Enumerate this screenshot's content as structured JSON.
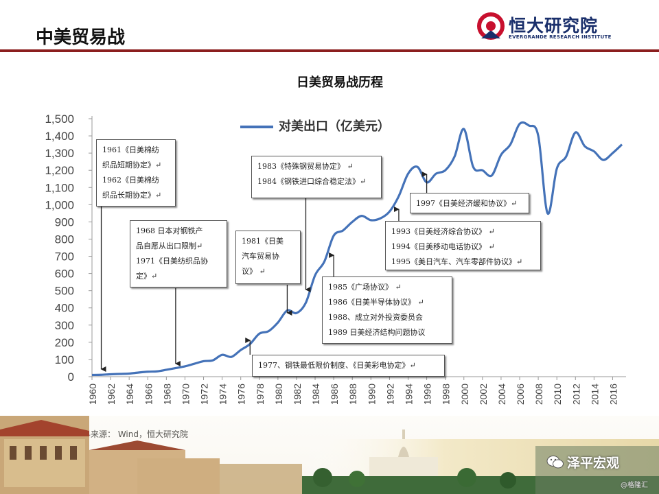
{
  "header": {
    "title": "中美贸易战"
  },
  "logo": {
    "cn": "恒大研究院",
    "en": "EVERGRANDE RESEARCH INSTITUTE",
    "icon": "evergrande-logo-icon",
    "accent": "#c8102e",
    "navy": "#1a2f6b"
  },
  "colors": {
    "rule": "#8b1e1e",
    "line": "#4472b8"
  },
  "source": "资料来源： Wind，恒大研究院",
  "brand": {
    "name": "泽平宏观",
    "sub": "@格隆汇",
    "icon": "wechat-icon"
  },
  "annotations": [
    {
      "lines": [
        "1961《日美棉纺",
        "织品短期协定》↵",
        "1962《日美棉纺",
        "织品长期协定》↵"
      ]
    },
    {
      "lines": [
        "1968  日本对钢铁产",
        "品自愿从出口限制↵",
        "1971《日美纺织品协",
        "定》↵"
      ]
    },
    {
      "lines": [
        "1981《日美",
        "汽车贸易协",
        "议》 ↵"
      ]
    },
    {
      "lines": [
        "1983《特殊钢贸易协定》 ↵",
        "1984《钢铁进口综合稳定法》↵"
      ]
    },
    {
      "lines": [
        "1977、钢铁最低限价制度、《日美彩电协定》↵"
      ]
    },
    {
      "lines": [
        "1985《广场协议》 ↵",
        "1986《日美半导体协议》 ↵",
        "1988、成立对外投资委员会",
        "1989 日美经济结构问题协议"
      ]
    },
    {
      "lines": [
        "1997《日美经济缓和协议》↵"
      ]
    },
    {
      "lines": [
        "1993《日美经济综合协议》 ↵",
        "1994《日美移动电话协议》 ↵",
        "1995《美日汽车、汽车零部件协议》↵"
      ]
    }
  ],
  "chart_data": {
    "type": "line",
    "title": "日美贸易战历程",
    "xlabel": "",
    "ylabel": "",
    "ylim": [
      0,
      1500
    ],
    "xlim": [
      1960,
      2017
    ],
    "yticks": [
      "0",
      "100",
      "200",
      "300",
      "400",
      "500",
      "600",
      "700",
      "800",
      "900",
      "1,000",
      "1,100",
      "1,200",
      "1,300",
      "1,400",
      "1,500"
    ],
    "xticks": [
      "1960",
      "1962",
      "1964",
      "1966",
      "1968",
      "1970",
      "1972",
      "1974",
      "1976",
      "1978",
      "1980",
      "1982",
      "1984",
      "1986",
      "1988",
      "1990",
      "1992",
      "1994",
      "1996",
      "1998",
      "2000",
      "2002",
      "2004",
      "2006",
      "2008",
      "2010",
      "2012",
      "2014",
      "2016"
    ],
    "legend": "top-center",
    "grid": false,
    "series": [
      {
        "name": "对美出口（亿美元）",
        "x": [
          1960,
          1961,
          1962,
          1963,
          1964,
          1965,
          1966,
          1967,
          1968,
          1969,
          1970,
          1971,
          1972,
          1973,
          1974,
          1975,
          1976,
          1977,
          1978,
          1979,
          1980,
          1981,
          1982,
          1983,
          1984,
          1985,
          1986,
          1987,
          1988,
          1989,
          1990,
          1991,
          1992,
          1993,
          1994,
          1995,
          1996,
          1997,
          1998,
          1999,
          2000,
          2001,
          2002,
          2003,
          2004,
          2005,
          2006,
          2007,
          2008,
          2009,
          2010,
          2011,
          2012,
          2013,
          2014,
          2015,
          2016,
          2017
        ],
        "values": [
          10,
          11,
          14,
          16,
          18,
          24,
          29,
          31,
          40,
          50,
          60,
          75,
          90,
          95,
          127,
          115,
          155,
          190,
          250,
          265,
          315,
          385,
          370,
          430,
          590,
          670,
          820,
          850,
          900,
          935,
          910,
          920,
          960,
          1050,
          1180,
          1220,
          1130,
          1180,
          1200,
          1280,
          1440,
          1220,
          1200,
          1170,
          1290,
          1350,
          1470,
          1460,
          1400,
          950,
          1210,
          1280,
          1420,
          1340,
          1310,
          1260,
          1300,
          1350
        ]
      }
    ]
  },
  "arrows": [
    {
      "target_year": 1961
    },
    {
      "target_year": 1969
    },
    {
      "target_year": 1981
    },
    {
      "target_year": 1983
    },
    {
      "target_year": 1977
    },
    {
      "target_year": 1986
    },
    {
      "target_year": 1993
    },
    {
      "target_year": 1996
    }
  ]
}
